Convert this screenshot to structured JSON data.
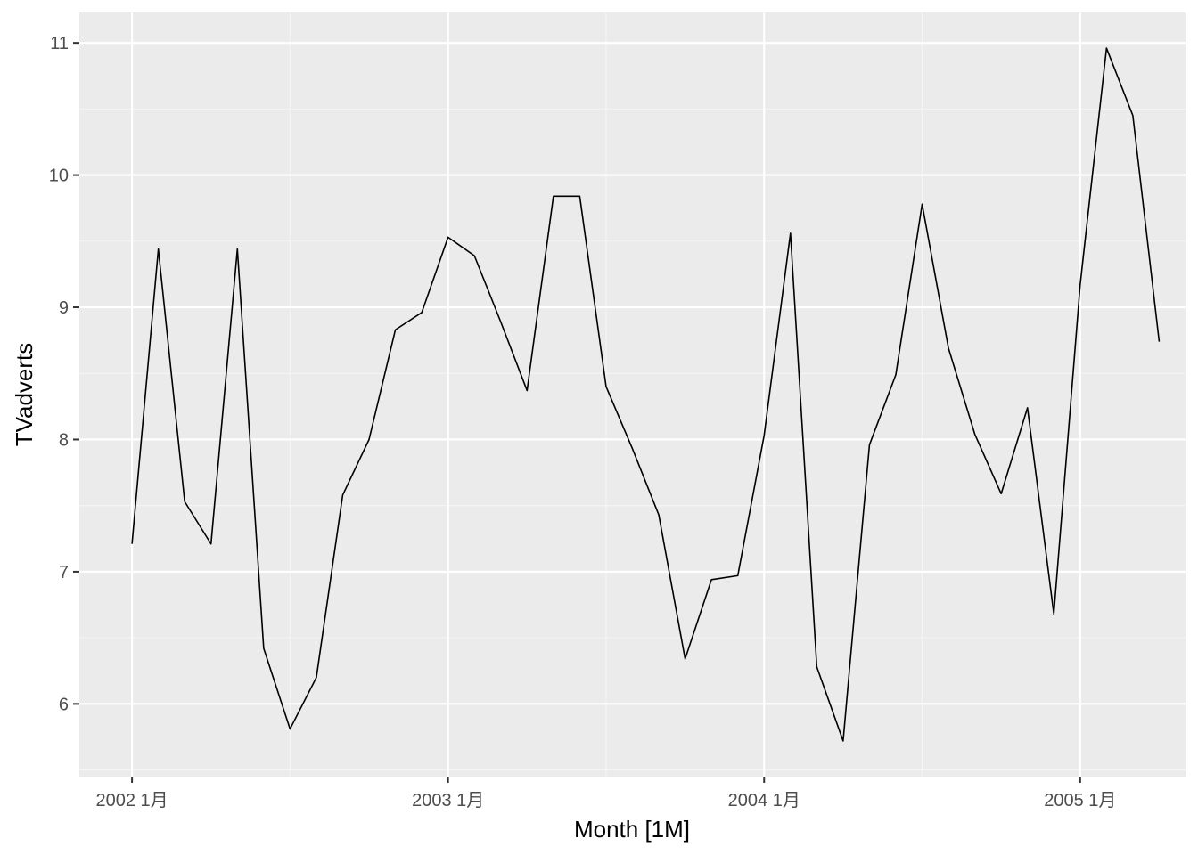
{
  "chart_data": {
    "type": "line",
    "title": "",
    "xlabel": "Month [1M]",
    "ylabel": "TVadverts",
    "x_ticks": [
      "2002 1月",
      "2003 1月",
      "2004 1月",
      "2005 1月"
    ],
    "y_ticks": [
      "6",
      "7",
      "8",
      "9",
      "10",
      "11"
    ],
    "ylim": [
      5.45,
      11.23
    ],
    "xlim": [
      "2001-11",
      "2005-05"
    ],
    "grid": true,
    "legend": "none",
    "x": [
      "2002-01",
      "2002-02",
      "2002-03",
      "2002-04",
      "2002-05",
      "2002-06",
      "2002-07",
      "2002-08",
      "2002-09",
      "2002-10",
      "2002-11",
      "2002-12",
      "2003-01",
      "2003-02",
      "2003-03",
      "2003-04",
      "2003-05",
      "2003-06",
      "2003-07",
      "2003-08",
      "2003-09",
      "2003-10",
      "2003-11",
      "2003-12",
      "2004-01",
      "2004-02",
      "2004-03",
      "2004-04",
      "2004-05",
      "2004-06",
      "2004-07",
      "2004-08",
      "2004-09",
      "2004-10",
      "2004-11",
      "2004-12",
      "2005-01",
      "2005-02",
      "2005-03",
      "2005-04"
    ],
    "series": [
      {
        "values": [
          7.21,
          9.44,
          7.53,
          7.21,
          9.44,
          6.42,
          5.81,
          6.2,
          7.58,
          8.0,
          8.83,
          8.96,
          9.53,
          9.39,
          8.89,
          8.37,
          9.84,
          9.84,
          8.4,
          7.93,
          7.43,
          6.34,
          6.94,
          6.97,
          8.03,
          9.56,
          6.28,
          5.72,
          7.96,
          8.49,
          9.78,
          8.69,
          8.04,
          7.59,
          8.24,
          6.68,
          9.17,
          10.96,
          10.45,
          8.74
        ],
        "color": "#000000"
      }
    ],
    "colors": {
      "panel_background": "#ebebeb",
      "grid_major": "#ffffff",
      "grid_minor": "#f5f5f5",
      "tick_text": "#4d4d4d",
      "tick_mark": "#333333"
    }
  }
}
